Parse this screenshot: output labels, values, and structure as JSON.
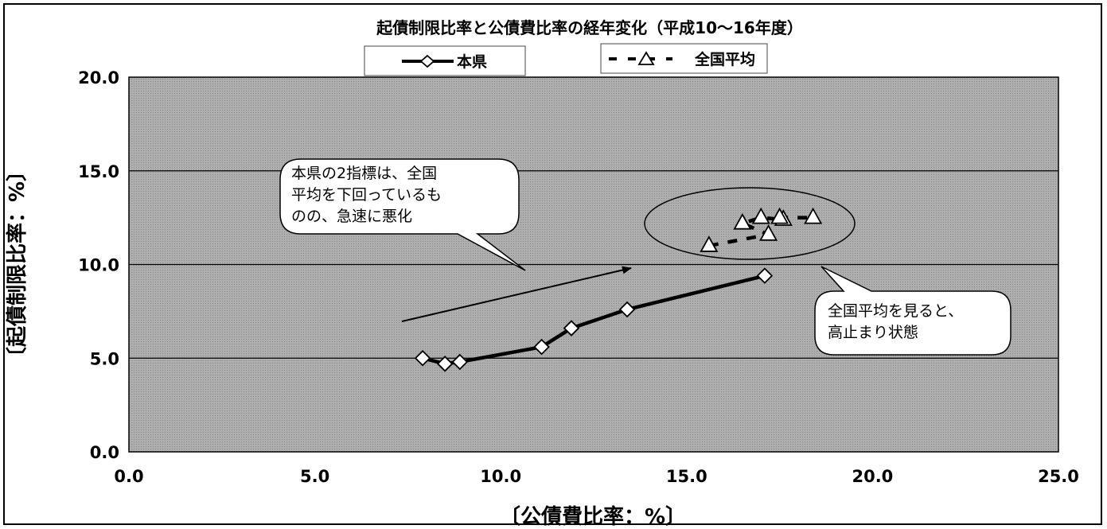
{
  "chart_data": {
    "type": "scatter",
    "title": "起債制限比率と公債費比率の経年変化（平成10～16年度）",
    "xlabel": "〔公債費比率：%〕",
    "ylabel": "〔起債制限比率：%〕",
    "xlim": [
      0,
      25
    ],
    "ylim": [
      0,
      20
    ],
    "x_ticks": [
      "0.0",
      "5.0",
      "10.0",
      "15.0",
      "20.0",
      "25.0"
    ],
    "y_ticks": [
      "0.0",
      "5.0",
      "10.0",
      "15.0",
      "20.0"
    ],
    "grid": "horizontal",
    "background": "#a9a9a9",
    "series": [
      {
        "name": "本県",
        "marker": "diamond",
        "line": "solid",
        "color": "#000000",
        "points": [
          {
            "x": 7.9,
            "y": 5.0
          },
          {
            "x": 8.5,
            "y": 4.7
          },
          {
            "x": 8.9,
            "y": 4.8
          },
          {
            "x": 11.1,
            "y": 5.6
          },
          {
            "x": 11.9,
            "y": 6.6
          },
          {
            "x": 13.4,
            "y": 7.6
          },
          {
            "x": 17.1,
            "y": 9.4
          }
        ]
      },
      {
        "name": "全国平均",
        "marker": "triangle",
        "line": "dashed",
        "color": "#000000",
        "points": [
          {
            "x": 15.6,
            "y": 11.0
          },
          {
            "x": 17.2,
            "y": 11.6
          },
          {
            "x": 16.5,
            "y": 12.2
          },
          {
            "x": 17.0,
            "y": 12.5
          },
          {
            "x": 17.6,
            "y": 12.4
          },
          {
            "x": 17.5,
            "y": 12.5
          },
          {
            "x": 18.4,
            "y": 12.5
          }
        ]
      }
    ],
    "annotations": [
      {
        "text": "本県の2指標は、全国\n平均を下回っているも\nのの、急速に悪化"
      },
      {
        "text": "全国平均を見ると、\n高止まり状態"
      }
    ],
    "legend_placement": "top"
  }
}
